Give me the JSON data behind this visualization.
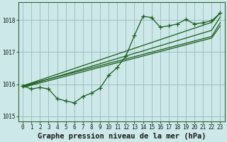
{
  "xlabel": "Graphe pression niveau de la mer (hPa)",
  "bg_color": "#cce8e8",
  "grid_color": "#99bbbb",
  "line_color": "#1a5c1a",
  "x_hours": [
    0,
    1,
    2,
    3,
    4,
    5,
    6,
    7,
    8,
    9,
    10,
    11,
    12,
    13,
    14,
    15,
    16,
    17,
    18,
    19,
    20,
    21,
    22,
    23
  ],
  "main_line": [
    1015.95,
    1015.85,
    1015.9,
    1015.85,
    1015.55,
    1015.48,
    1015.42,
    1015.62,
    1015.72,
    1015.88,
    1016.28,
    1016.52,
    1016.88,
    1017.52,
    1018.12,
    1018.08,
    1017.78,
    1017.82,
    1017.88,
    1018.02,
    1017.88,
    1017.92,
    1017.98,
    1018.22
  ],
  "trend1": [
    1015.95,
    1016.04,
    1016.13,
    1016.22,
    1016.31,
    1016.4,
    1016.49,
    1016.58,
    1016.67,
    1016.76,
    1016.85,
    1016.94,
    1017.03,
    1017.12,
    1017.21,
    1017.3,
    1017.39,
    1017.48,
    1017.57,
    1017.66,
    1017.75,
    1017.84,
    1017.93,
    1018.22
  ],
  "trend2": [
    1015.95,
    1016.02,
    1016.09,
    1016.16,
    1016.23,
    1016.3,
    1016.37,
    1016.44,
    1016.51,
    1016.58,
    1016.65,
    1016.72,
    1016.79,
    1016.86,
    1016.93,
    1017.0,
    1017.07,
    1017.14,
    1017.21,
    1017.28,
    1017.35,
    1017.42,
    1017.49,
    1017.92
  ],
  "trend3": [
    1015.92,
    1016.0,
    1016.08,
    1016.16,
    1016.24,
    1016.32,
    1016.4,
    1016.48,
    1016.56,
    1016.64,
    1016.72,
    1016.8,
    1016.88,
    1016.96,
    1017.04,
    1017.12,
    1017.2,
    1017.28,
    1017.36,
    1017.44,
    1017.52,
    1017.6,
    1017.68,
    1018.1
  ],
  "trend4": [
    1015.9,
    1015.97,
    1016.04,
    1016.11,
    1016.18,
    1016.25,
    1016.32,
    1016.39,
    1016.46,
    1016.53,
    1016.6,
    1016.67,
    1016.74,
    1016.81,
    1016.88,
    1016.95,
    1017.02,
    1017.09,
    1017.16,
    1017.23,
    1017.3,
    1017.37,
    1017.44,
    1017.82
  ],
  "ylim": [
    1014.85,
    1018.55
  ],
  "yticks": [
    1015,
    1016,
    1017,
    1018
  ],
  "xticks": [
    0,
    1,
    2,
    3,
    4,
    5,
    6,
    7,
    8,
    9,
    10,
    11,
    12,
    13,
    14,
    15,
    16,
    17,
    18,
    19,
    20,
    21,
    22,
    23
  ],
  "marker": "+",
  "markersize": 4.0,
  "linewidth": 0.9,
  "xlabel_fontsize": 7.5,
  "tick_fontsize": 5.5
}
